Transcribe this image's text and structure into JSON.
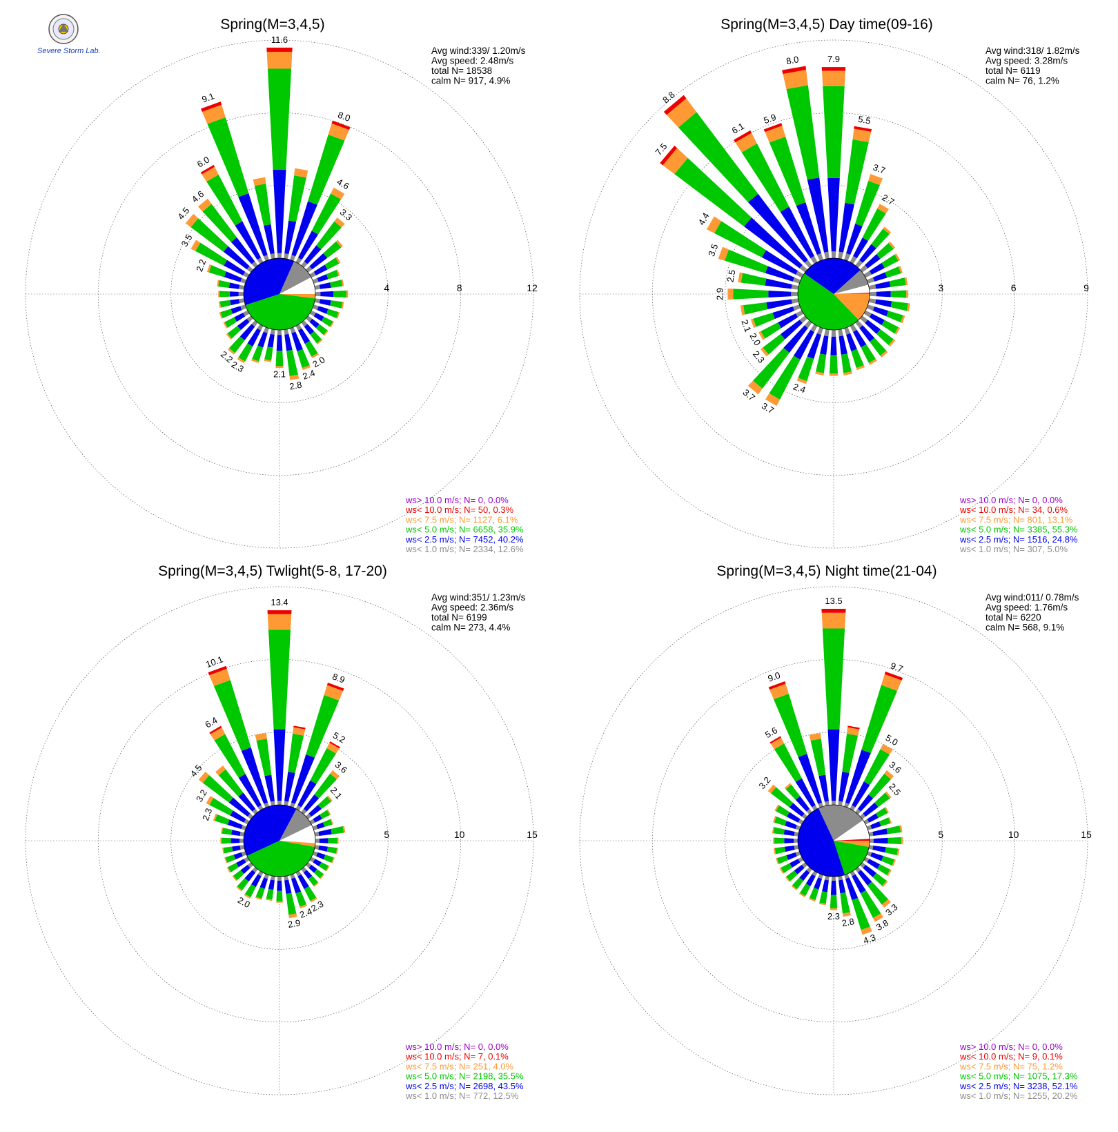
{
  "colors": {
    "gray": "#8c8c8c",
    "blue": "#0000ee",
    "green": "#00c800",
    "orange": "#ff9933",
    "red": "#ee0000",
    "purple": "#9900cc"
  },
  "logo": {
    "icon": "lab-seal-icon",
    "text": "Severe Storm Lab."
  },
  "chart_data": [
    {
      "type": "polar-bar",
      "title": "Spring(M=3,4,5)",
      "ring_labels": [
        "4",
        "8",
        "12"
      ],
      "rmax": 12,
      "info": [
        "Avg wind:339/ 1.20m/s",
        "Avg speed: 2.48m/s",
        "total N=      18538",
        "calm N=    917,   4.9%"
      ],
      "legend": [
        {
          "label": "ws> 10.0 m/s; N=     0,  0.0%",
          "color": "purple"
        },
        {
          "label": "ws< 10.0 m/s; N=    50,  0.3%",
          "color": "red"
        },
        {
          "label": "ws<  7.5 m/s; N=  1127,  6.1%",
          "color": "orange"
        },
        {
          "label": "ws<  5.0 m/s; N=  6658, 35.9%",
          "color": "green"
        },
        {
          "label": "ws<  2.5 m/s; N=  7452, 40.2%",
          "color": "blue"
        },
        {
          "label": "ws<  1.0 m/s; N=  2334, 12.6%",
          "color": "gray"
        }
      ],
      "pie": [
        {
          "start": -108,
          "end": 24,
          "color": "blue"
        },
        {
          "start": 24,
          "end": 62,
          "color": "gray"
        },
        {
          "start": 62,
          "end": 90,
          "color": "white"
        },
        {
          "start": 90,
          "end": 97,
          "color": "orange"
        },
        {
          "start": 97,
          "end": 252,
          "color": "green"
        }
      ],
      "sectors": [
        {
          "dir": 0,
          "total": 11.6,
          "label": "11.6"
        },
        {
          "dir": 10,
          "total": 5.0
        },
        {
          "dir": 20,
          "total": 8.0,
          "label": "8.0"
        },
        {
          "dir": 30,
          "total": 4.6,
          "label": "4.6"
        },
        {
          "dir": 40,
          "total": 3.3,
          "label": "3.3"
        },
        {
          "dir": 50,
          "total": 2.4
        },
        {
          "dir": 60,
          "total": 1.8
        },
        {
          "dir": 70,
          "total": 1.5
        },
        {
          "dir": 80,
          "total": 1.6
        },
        {
          "dir": 90,
          "total": 1.8
        },
        {
          "dir": 100,
          "total": 1.6
        },
        {
          "dir": 110,
          "total": 1.5
        },
        {
          "dir": 120,
          "total": 1.4
        },
        {
          "dir": 130,
          "total": 1.4
        },
        {
          "dir": 140,
          "total": 1.5
        },
        {
          "dir": 150,
          "total": 2.0,
          "label": "2.0"
        },
        {
          "dir": 160,
          "total": 2.4,
          "label": "2.4"
        },
        {
          "dir": 170,
          "total": 2.8,
          "label": "2.8"
        },
        {
          "dir": 180,
          "total": 2.1,
          "label": "2.1"
        },
        {
          "dir": 190,
          "total": 1.8
        },
        {
          "dir": 200,
          "total": 2.0
        },
        {
          "dir": 210,
          "total": 2.3,
          "label": "2.3"
        },
        {
          "dir": 220,
          "total": 2.2,
          "label": "2.2"
        },
        {
          "dir": 230,
          "total": 1.7
        },
        {
          "dir": 240,
          "total": 1.5
        },
        {
          "dir": 250,
          "total": 1.5
        },
        {
          "dir": 260,
          "total": 1.4
        },
        {
          "dir": 270,
          "total": 1.4
        },
        {
          "dir": 280,
          "total": 1.5
        },
        {
          "dir": 290,
          "total": 2.2,
          "label": "2.2"
        },
        {
          "dir": 300,
          "total": 3.5,
          "label": "3.5"
        },
        {
          "dir": 310,
          "total": 4.5,
          "label": "4.5"
        },
        {
          "dir": 320,
          "total": 4.6,
          "label": "4.6"
        },
        {
          "dir": 330,
          "total": 6.0,
          "label": "6.0"
        },
        {
          "dir": 340,
          "total": 9.1,
          "label": "9.1"
        },
        {
          "dir": 350,
          "total": 4.5
        }
      ]
    },
    {
      "type": "polar-bar",
      "title": "Spring(M=3,4,5) Day time(09-16)",
      "ring_labels": [
        "3",
        "6",
        "9"
      ],
      "rmax": 9,
      "info": [
        "Avg wind:318/ 1.82m/s",
        "Avg speed: 3.28m/s",
        "total N=       6119",
        "calm N=     76,   1.2%"
      ],
      "legend": [
        {
          "label": "ws> 10.0 m/s; N=     0,  0.0%",
          "color": "purple"
        },
        {
          "label": "ws< 10.0 m/s; N=    34,  0.6%",
          "color": "red"
        },
        {
          "label": "ws<  7.5 m/s; N=   801, 13.1%",
          "color": "orange"
        },
        {
          "label": "ws<  5.0 m/s; N=  3385, 55.3%",
          "color": "green"
        },
        {
          "label": "ws<  2.5 m/s; N=  1516, 24.8%",
          "color": "blue"
        },
        {
          "label": "ws<  1.0 m/s; N=   307,  5.0%",
          "color": "gray"
        }
      ],
      "pie": [
        {
          "start": -55,
          "end": 48,
          "color": "blue"
        },
        {
          "start": 48,
          "end": 75,
          "color": "gray"
        },
        {
          "start": 75,
          "end": 88,
          "color": "white"
        },
        {
          "start": 88,
          "end": 89.5,
          "color": "red"
        },
        {
          "start": 89.5,
          "end": 136,
          "color": "orange"
        },
        {
          "start": 136,
          "end": 305,
          "color": "green"
        }
      ],
      "sectors": [
        {
          "dir": 0,
          "total": 7.9,
          "label": "7.9"
        },
        {
          "dir": 10,
          "total": 5.5,
          "label": "5.5"
        },
        {
          "dir": 20,
          "total": 3.7,
          "label": "3.7"
        },
        {
          "dir": 30,
          "total": 2.7,
          "label": "2.7"
        },
        {
          "dir": 40,
          "total": 2.0
        },
        {
          "dir": 50,
          "total": 1.7
        },
        {
          "dir": 60,
          "total": 1.6
        },
        {
          "dir": 70,
          "total": 1.5
        },
        {
          "dir": 80,
          "total": 1.6
        },
        {
          "dir": 90,
          "total": 1.6
        },
        {
          "dir": 100,
          "total": 1.7
        },
        {
          "dir": 110,
          "total": 1.6
        },
        {
          "dir": 120,
          "total": 1.6
        },
        {
          "dir": 130,
          "total": 1.7
        },
        {
          "dir": 140,
          "total": 1.8
        },
        {
          "dir": 150,
          "total": 1.8
        },
        {
          "dir": 160,
          "total": 1.8
        },
        {
          "dir": 170,
          "total": 1.9
        },
        {
          "dir": 180,
          "total": 1.9
        },
        {
          "dir": 190,
          "total": 1.9
        },
        {
          "dir": 200,
          "total": 2.4,
          "label": "2.4"
        },
        {
          "dir": 210,
          "total": 3.7,
          "label": "3.7"
        },
        {
          "dir": 220,
          "total": 3.7,
          "label": "3.7"
        },
        {
          "dir": 230,
          "total": 2.3,
          "label": "2.3"
        },
        {
          "dir": 240,
          "total": 2.0,
          "label": "2.0"
        },
        {
          "dir": 250,
          "total": 2.1,
          "label": "2.1"
        },
        {
          "dir": 260,
          "total": 2.4
        },
        {
          "dir": 270,
          "total": 2.9,
          "label": "2.9"
        },
        {
          "dir": 280,
          "total": 2.5,
          "label": "2.5"
        },
        {
          "dir": 290,
          "total": 3.5,
          "label": "3.5"
        },
        {
          "dir": 300,
          "total": 4.4,
          "label": "4.4"
        },
        {
          "dir": 310,
          "total": 7.5,
          "label": "7.5"
        },
        {
          "dir": 320,
          "total": 8.8,
          "label": "8.8"
        },
        {
          "dir": 330,
          "total": 6.1,
          "label": "6.1"
        },
        {
          "dir": 340,
          "total": 5.9,
          "label": "5.9"
        },
        {
          "dir": 350,
          "total": 8.0,
          "label": "8.0"
        }
      ]
    },
    {
      "type": "polar-bar",
      "title": "Spring(M=3,4,5) Twlight(5-8, 17-20)",
      "ring_labels": [
        "5",
        "10",
        "15"
      ],
      "rmax": 15,
      "info": [
        "Avg wind:351/ 1.23m/s",
        "Avg speed: 2.36m/s",
        "total N=       6199",
        "calm N=    273,   4.4%"
      ],
      "legend": [
        {
          "label": "ws> 10.0 m/s; N=     0,  0.0%",
          "color": "purple"
        },
        {
          "label": "ws< 10.0 m/s; N=     7,  0.1%",
          "color": "red"
        },
        {
          "label": "ws<  7.5 m/s; N=   251,  4.0%",
          "color": "orange"
        },
        {
          "label": "ws<  5.0 m/s; N=  2198, 35.5%",
          "color": "green"
        },
        {
          "label": "ws<  2.5 m/s; N=  2698, 43.5%",
          "color": "blue"
        },
        {
          "label": "ws<  1.0 m/s; N=   772, 12.5%",
          "color": "gray"
        }
      ],
      "pie": [
        {
          "start": -115,
          "end": 28,
          "color": "blue"
        },
        {
          "start": 28,
          "end": 64,
          "color": "gray"
        },
        {
          "start": 64,
          "end": 94,
          "color": "white"
        },
        {
          "start": 94,
          "end": 100,
          "color": "orange"
        },
        {
          "start": 100,
          "end": 245,
          "color": "green"
        }
      ],
      "sectors": [
        {
          "dir": 0,
          "total": 13.4,
          "label": "13.4"
        },
        {
          "dir": 10,
          "total": 5.5
        },
        {
          "dir": 20,
          "total": 8.9,
          "label": "8.9"
        },
        {
          "dir": 30,
          "total": 5.2,
          "label": "5.2"
        },
        {
          "dir": 40,
          "total": 3.6,
          "label": "3.6"
        },
        {
          "dir": 50,
          "total": 2.1,
          "label": "2.1"
        },
        {
          "dir": 60,
          "total": 1.5
        },
        {
          "dir": 70,
          "total": 1.4
        },
        {
          "dir": 80,
          "total": 2.1
        },
        {
          "dir": 90,
          "total": 1.6
        },
        {
          "dir": 100,
          "total": 1.6
        },
        {
          "dir": 110,
          "total": 1.5
        },
        {
          "dir": 120,
          "total": 1.4
        },
        {
          "dir": 130,
          "total": 1.4
        },
        {
          "dir": 140,
          "total": 1.5
        },
        {
          "dir": 150,
          "total": 2.3,
          "label": "2.3"
        },
        {
          "dir": 160,
          "total": 2.4,
          "label": "2.4"
        },
        {
          "dir": 170,
          "total": 2.9,
          "label": "2.9"
        },
        {
          "dir": 180,
          "total": 1.8
        },
        {
          "dir": 190,
          "total": 1.7
        },
        {
          "dir": 200,
          "total": 1.8
        },
        {
          "dir": 210,
          "total": 2.0,
          "label": "2.0"
        },
        {
          "dir": 220,
          "total": 1.9
        },
        {
          "dir": 230,
          "total": 1.6
        },
        {
          "dir": 240,
          "total": 1.6
        },
        {
          "dir": 250,
          "total": 1.5
        },
        {
          "dir": 260,
          "total": 1.5
        },
        {
          "dir": 270,
          "total": 1.6
        },
        {
          "dir": 280,
          "total": 1.6
        },
        {
          "dir": 290,
          "total": 2.3,
          "label": "2.3"
        },
        {
          "dir": 300,
          "total": 3.2,
          "label": "3.2"
        },
        {
          "dir": 310,
          "total": 4.5,
          "label": "4.5"
        },
        {
          "dir": 320,
          "total": 4.0
        },
        {
          "dir": 330,
          "total": 6.4,
          "label": "6.4"
        },
        {
          "dir": 340,
          "total": 10.1,
          "label": "10.1"
        },
        {
          "dir": 350,
          "total": 5.0
        }
      ]
    },
    {
      "type": "polar-bar",
      "title": "Spring(M=3,4,5) Night time(21-04)",
      "ring_labels": [
        "5",
        "10",
        "15"
      ],
      "rmax": 15,
      "info": [
        "Avg wind:011/ 0.78m/s",
        "Avg speed: 1.76m/s",
        "total N=       6220",
        "calm N=    568,   9.1%"
      ],
      "legend": [
        {
          "label": "ws> 10.0 m/s; N=     0,  0.0%",
          "color": "purple"
        },
        {
          "label": "ws< 10.0 m/s; N=     9,  0.1%",
          "color": "red"
        },
        {
          "label": "ws<  7.5 m/s; N=    75,  1.2%",
          "color": "orange"
        },
        {
          "label": "ws<  5.0 m/s; N=  1075, 17.3%",
          "color": "green"
        },
        {
          "label": "ws<  2.5 m/s; N=  3238, 52.1%",
          "color": "blue"
        },
        {
          "label": "ws<  1.0 m/s; N=  1255, 20.2%",
          "color": "gray"
        }
      ],
      "pie": [
        {
          "start": -25,
          "end": 55,
          "color": "gray"
        },
        {
          "start": 55,
          "end": 87,
          "color": "white"
        },
        {
          "start": 87,
          "end": 90,
          "color": "red"
        },
        {
          "start": 90,
          "end": 100,
          "color": "orange"
        },
        {
          "start": 100,
          "end": 162,
          "color": "green"
        },
        {
          "start": 162,
          "end": 335,
          "color": "blue"
        }
      ],
      "sectors": [
        {
          "dir": 0,
          "total": 13.5,
          "label": "13.5"
        },
        {
          "dir": 10,
          "total": 5.5
        },
        {
          "dir": 20,
          "total": 9.7,
          "label": "9.7"
        },
        {
          "dir": 30,
          "total": 5.0,
          "label": "5.0"
        },
        {
          "dir": 40,
          "total": 3.6,
          "label": "3.6"
        },
        {
          "dir": 50,
          "total": 2.5,
          "label": "2.5"
        },
        {
          "dir": 60,
          "total": 1.8
        },
        {
          "dir": 70,
          "total": 1.7
        },
        {
          "dir": 80,
          "total": 2.3
        },
        {
          "dir": 90,
          "total": 2.3
        },
        {
          "dir": 100,
          "total": 2.1
        },
        {
          "dir": 110,
          "total": 2.0
        },
        {
          "dir": 120,
          "total": 2.0
        },
        {
          "dir": 130,
          "total": 2.2
        },
        {
          "dir": 140,
          "total": 3.3,
          "label": "3.3"
        },
        {
          "dir": 150,
          "total": 3.8,
          "label": "3.8"
        },
        {
          "dir": 160,
          "total": 4.3,
          "label": "4.3"
        },
        {
          "dir": 170,
          "total": 2.8,
          "label": "2.8"
        },
        {
          "dir": 180,
          "total": 2.3,
          "label": "2.3"
        },
        {
          "dir": 190,
          "total": 2.0
        },
        {
          "dir": 200,
          "total": 1.9
        },
        {
          "dir": 210,
          "total": 1.9
        },
        {
          "dir": 220,
          "total": 1.8
        },
        {
          "dir": 230,
          "total": 1.7
        },
        {
          "dir": 240,
          "total": 1.7
        },
        {
          "dir": 250,
          "total": 1.7
        },
        {
          "dir": 260,
          "total": 1.7
        },
        {
          "dir": 270,
          "total": 1.7
        },
        {
          "dir": 280,
          "total": 1.8
        },
        {
          "dir": 290,
          "total": 1.9
        },
        {
          "dir": 300,
          "total": 2.1
        },
        {
          "dir": 310,
          "total": 3.2,
          "label": "3.2"
        },
        {
          "dir": 320,
          "total": 2.5
        },
        {
          "dir": 330,
          "total": 5.6,
          "label": "5.6"
        },
        {
          "dir": 340,
          "total": 9.0,
          "label": "9.0"
        },
        {
          "dir": 350,
          "total": 5.0
        }
      ]
    }
  ]
}
